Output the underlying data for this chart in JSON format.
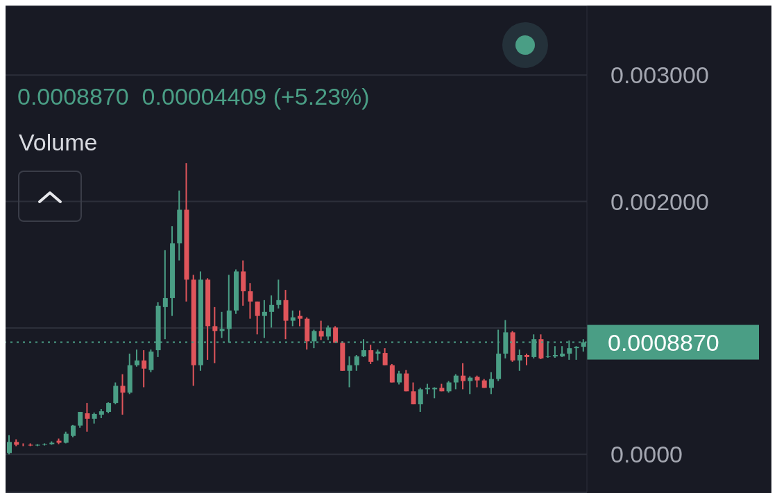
{
  "chart_data": {
    "type": "candlestick",
    "subtitle": "0.0008870  0.00004409 (+5.23%)",
    "annotations": [
      "Volume"
    ],
    "categories": [
      null,
      null,
      null,
      null,
      null,
      null,
      null,
      null,
      null,
      null,
      null,
      null,
      null,
      null,
      null,
      null,
      null,
      null,
      null,
      null,
      null,
      null,
      null,
      null,
      null,
      null,
      null,
      null,
      null,
      null,
      null,
      null,
      null,
      null,
      null,
      null,
      null,
      null,
      null,
      null,
      null,
      null,
      null,
      null,
      null,
      null,
      null,
      null,
      null,
      null,
      null,
      null,
      null,
      null,
      null,
      null,
      null,
      null,
      null,
      null,
      null,
      null,
      null,
      null,
      null,
      null,
      null,
      null,
      null,
      null,
      null,
      null,
      null,
      null,
      null,
      null,
      null,
      null,
      null,
      null,
      null,
      null
    ],
    "ohlc": [
      [
        1.1e-05,
        0.000152,
        0,
        9.8e-05
      ],
      [
        9.8e-05,
        0.000119,
        6.5e-05,
        7.6e-05
      ],
      [
        7.6e-05,
        8.7e-05,
        6.5e-05,
        7.6e-05
      ],
      [
        7.6e-05,
        8.7e-05,
        6.5e-05,
        7e-05
      ],
      [
        7e-05,
        8.1e-05,
        6.5e-05,
        7.6e-05
      ],
      [
        7.6e-05,
        8.7e-05,
        7e-05,
        8.1e-05
      ],
      [
        8.1e-05,
        0.000103,
        7.6e-05,
        9.2e-05
      ],
      [
        0.000108,
        0.000125,
        8.1e-05,
        9.2e-05
      ],
      [
        9.2e-05,
        0.000179,
        8.7e-05,
        0.000163
      ],
      [
        0.000146,
        0.000233,
        0.000136,
        0.000228
      ],
      [
        0.000228,
        0.000336,
        0.000211,
        0.000336
      ],
      [
        0.000325,
        0.000407,
        0.000179,
        0.000282
      ],
      [
        0.000282,
        0.000331,
        0.000244,
        0.00032
      ],
      [
        0.000314,
        0.000358,
        0.000287,
        0.000341
      ],
      [
        0.000336,
        0.000412,
        0.000325,
        0.000407
      ],
      [
        0.000407,
        0.000569,
        0.000396,
        0.000542
      ],
      [
        0.000542,
        0.000634,
        0.000314,
        0.000488
      ],
      [
        0.000488,
        0.000797,
        0.000477,
        0.000705
      ],
      [
        0.000705,
        0.000829,
        0.000694,
        0.000743
      ],
      [
        0.000743,
        0.000824,
        0.000531,
        0.000678
      ],
      [
        0.000667,
        0.000829,
        0.00065,
        0.000813
      ],
      [
        0.000824,
        0.001203,
        0.00077,
        0.001176
      ],
      [
        0.001165,
        0.001615,
        0.000911,
        0.001236
      ],
      [
        0.001236,
        0.001805,
        0.001095,
        0.001669
      ],
      [
        0.001669,
        0.002087,
        0.001534,
        0.001935
      ],
      [
        0.001935,
        0.002304,
        0.001209,
        0.001382
      ],
      [
        0.001382,
        0.00142,
        0.000542,
        0.000705
      ],
      [
        0.000705,
        0.001447,
        0.000661,
        0.001382
      ],
      [
        0.001382,
        0.001393,
        0.000748,
        0.001014
      ],
      [
        0.001014,
        0.001165,
        0.000721,
        0.000976
      ],
      [
        0.000976,
        0.001127,
        0.000921,
        0.000992
      ],
      [
        0.000992,
        0.00142,
        0.000883,
        0.001138
      ],
      [
        0.001138,
        0.001463,
        0.001111,
        0.001447
      ],
      [
        0.001447,
        0.001534,
        0.001176,
        0.00129
      ],
      [
        0.00129,
        0.001355,
        0.001073,
        0.001209
      ],
      [
        0.001209,
        0.001209,
        0.000949,
        0.001095
      ],
      [
        0.001095,
        0.00122,
        0.000921,
        0.001127
      ],
      [
        0.001127,
        0.001257,
        0.001003,
        0.001182
      ],
      [
        0.001182,
        0.001382,
        0.001154,
        0.00122
      ],
      [
        0.00122,
        0.001301,
        0.000911,
        0.001057
      ],
      [
        0.001057,
        0.001138,
        0.001014,
        0.001084
      ],
      [
        0.001095,
        0.001138,
        0.001014,
        0.001073
      ],
      [
        0.001073,
        0.001084,
        0.000829,
        0.000894
      ],
      [
        0.000894,
        0.000986,
        0.00084,
        0.000976
      ],
      [
        0.000976,
        0.001057,
        0.000905,
        0.000932
      ],
      [
        0.000932,
        0.001019,
        0.000905,
        0.001003
      ],
      [
        0.001003,
        0.001014,
        0.000883,
        0.000883
      ],
      [
        0.000883,
        0.000894,
        0.000661,
        0.000661
      ],
      [
        0.000661,
        0.000775,
        0.000531,
        0.000705
      ],
      [
        0.000705,
        0.000786,
        0.000661,
        0.000775
      ],
      [
        0.000775,
        0.000911,
        0.00077,
        0.000824
      ],
      [
        0.000824,
        0.000867,
        0.000715,
        0.000732
      ],
      [
        0.000797,
        0.000829,
        0.000743,
        0.000813
      ],
      [
        0.000802,
        0.00084,
        0.000705,
        0.000705
      ],
      [
        0.000705,
        0.000715,
        0.000569,
        0.000569
      ],
      [
        0.000569,
        0.000661,
        0.000553,
        0.00064
      ],
      [
        0.00064,
        0.000667,
        0.000499,
        0.000499
      ],
      [
        0.000499,
        0.000569,
        0.000396,
        0.000396
      ],
      [
        0.000396,
        0.000526,
        0.000336,
        0.000515
      ],
      [
        0.000515,
        0.000558,
        0.000477,
        0.000526
      ],
      [
        0.000515,
        0.000531,
        0.000444,
        0.000526
      ],
      [
        0.000526,
        0.000558,
        0.000499,
        0.000499
      ],
      [
        0.000499,
        0.00058,
        0.000488,
        0.000569
      ],
      [
        0.000569,
        0.000634,
        0.000515,
        0.000623
      ],
      [
        0.000623,
        0.000721,
        0.000515,
        0.00058
      ],
      [
        0.00058,
        0.000618,
        0.000477,
        0.000607
      ],
      [
        0.000613,
        0.000623,
        0.000531,
        0.000585
      ],
      [
        0.000585,
        0.000596,
        0.000526,
        0.000526
      ],
      [
        0.000526,
        0.00065,
        0.000477,
        0.000596
      ],
      [
        0.000596,
        0.000986,
        0.00058,
        0.000797
      ],
      [
        0.000797,
        0.001062,
        0.000759,
        0.000965
      ],
      [
        0.000965,
        0.000976,
        0.000732,
        0.000743
      ],
      [
        0.000743,
        0.000829,
        0.000661,
        0.000786
      ],
      [
        0.000786,
        0.000797,
        0.000705,
        0.00077
      ],
      [
        0.00077,
        0.000949,
        0.000759,
        0.000911
      ],
      [
        0.000911,
        0.000949,
        0.000753,
        0.000759
      ],
      [
        0.00077,
        0.000894,
        0.000764,
        0.000775
      ],
      [
        0.000775,
        0.000856,
        0.000764,
        0.000786
      ],
      [
        0.000775,
        0.000856,
        0.00077,
        0.000797
      ],
      [
        0.000797,
        0.0009,
        0.000748,
        0.00084
      ],
      [
        0.00084,
        0.000856,
        0.000748,
        0.000851
      ],
      [
        0.000851,
        0.000911,
        0.000813,
        0.000887
      ]
    ],
    "colors": [
      "#4a9e85",
      "#e0555b",
      "#e0555b",
      "#e0555b",
      "#4a9e85",
      "#4a9e85",
      "#4a9e85",
      "#e0555b",
      "#4a9e85",
      "#4a9e85",
      "#4a9e85",
      "#e0555b",
      "#4a9e85",
      "#4a9e85",
      "#4a9e85",
      "#4a9e85",
      "#e0555b",
      "#4a9e85",
      "#4a9e85",
      "#e0555b",
      "#4a9e85",
      "#4a9e85",
      "#4a9e85",
      "#4a9e85",
      "#4a9e85",
      "#e0555b",
      "#e0555b",
      "#4a9e85",
      "#e0555b",
      "#e0555b",
      "#4a9e85",
      "#4a9e85",
      "#4a9e85",
      "#e0555b",
      "#e0555b",
      "#e0555b",
      "#4a9e85",
      "#4a9e85",
      "#4a9e85",
      "#e0555b",
      "#4a9e85",
      "#e0555b",
      "#e0555b",
      "#4a9e85",
      "#e0555b",
      "#4a9e85",
      "#e0555b",
      "#e0555b",
      "#4a9e85",
      "#4a9e85",
      "#4a9e85",
      "#e0555b",
      "#4a9e85",
      "#e0555b",
      "#e0555b",
      "#4a9e85",
      "#e0555b",
      "#e0555b",
      "#4a9e85",
      "#4a9e85",
      "#4a9e85",
      "#e0555b",
      "#4a9e85",
      "#4a9e85",
      "#e0555b",
      "#4a9e85",
      "#e0555b",
      "#e0555b",
      "#4a9e85",
      "#4a9e85",
      "#4a9e85",
      "#e0555b",
      "#4a9e85",
      "#e0555b",
      "#4a9e85",
      "#e0555b",
      "#4a9e85",
      "#4a9e85",
      "#4a9e85",
      "#4a9e85",
      "#4a9e85",
      "#4a9e85"
    ],
    "ylim": [
      -0.0003,
      0.00355
    ],
    "yticks": [
      {
        "value": 0,
        "label": "0.0000"
      },
      {
        "value": 0.001,
        "label": null
      },
      {
        "value": 0.002,
        "label": "0.002000"
      },
      {
        "value": 0.003,
        "label": "0.003000"
      }
    ],
    "grid": "y",
    "tick_labels": "y",
    "ref_lines": [
      {
        "axis": "y",
        "value": 0.000887,
        "label": "0.0008870",
        "color": "#4a9e85",
        "line_style": "dotted"
      }
    ]
  }
}
